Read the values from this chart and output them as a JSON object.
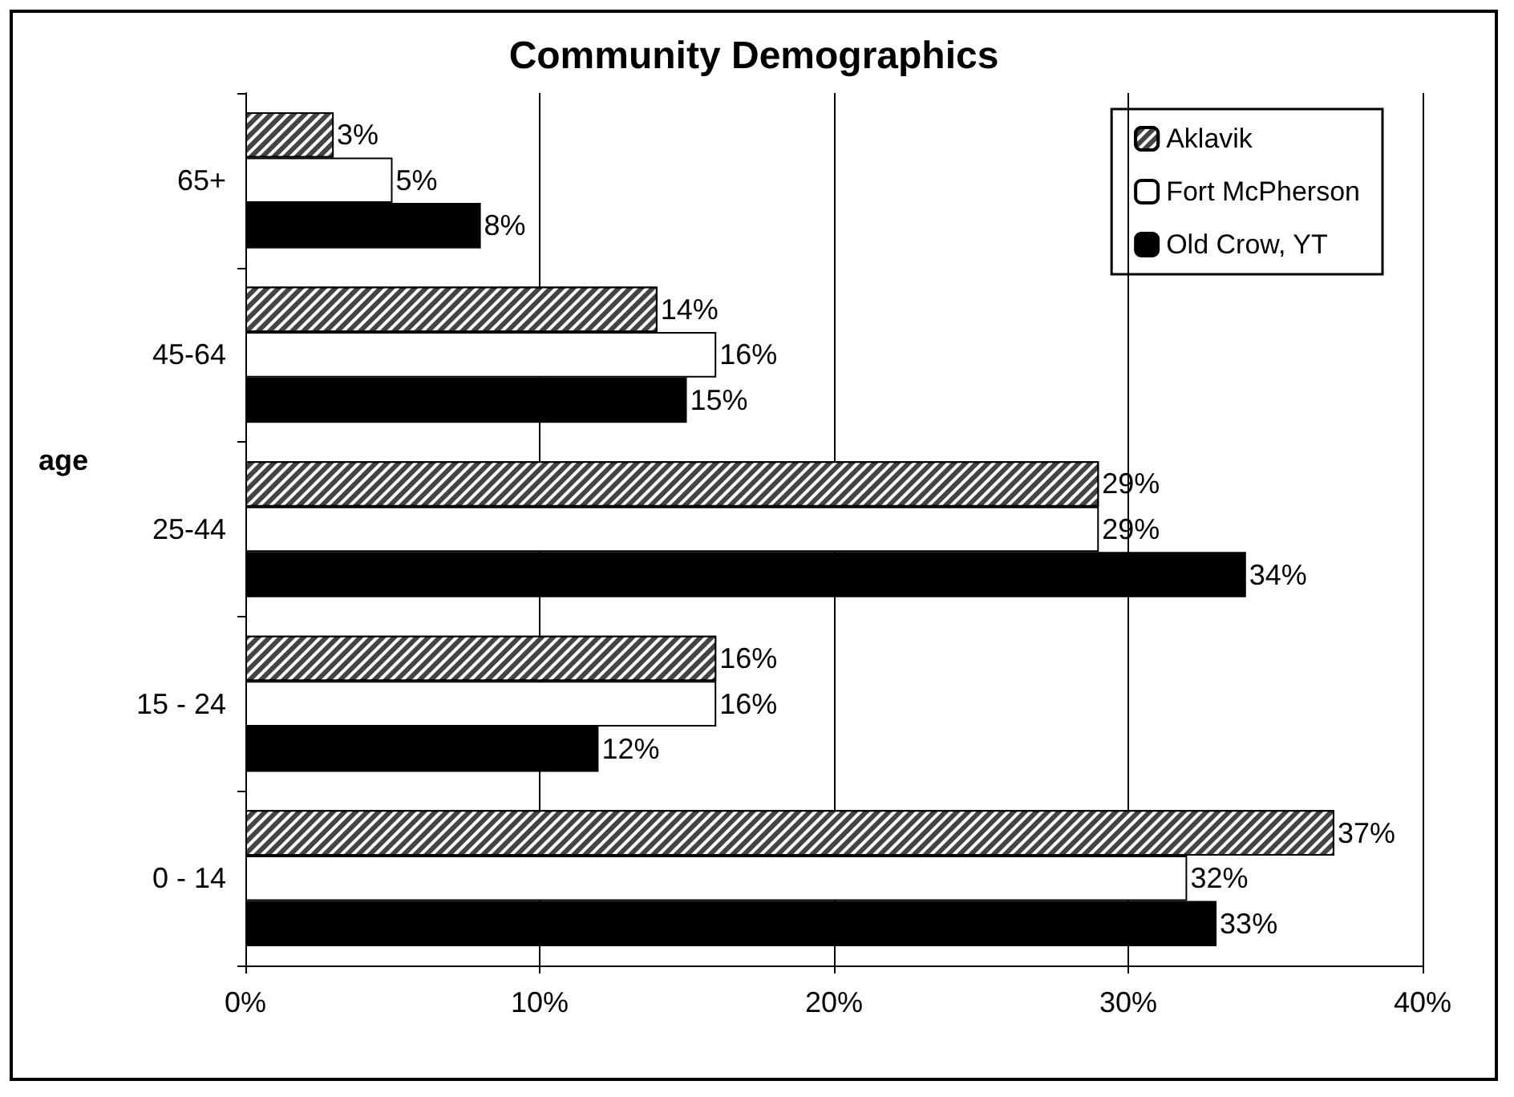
{
  "chart_data": {
    "type": "bar",
    "orientation": "horizontal",
    "title": "Community Demographics",
    "ylabel": "age",
    "categories": [
      "65+",
      "45-64",
      "25-44",
      "15 - 24",
      "0 - 14"
    ],
    "series": [
      {
        "name": "Aklavik",
        "color": "#444444",
        "values": [
          3,
          14,
          29,
          16,
          37
        ],
        "value_labels": [
          "3%",
          "14%",
          "29%",
          "16%",
          "37%"
        ]
      },
      {
        "name": "Fort McPherson",
        "color": "#ffffff",
        "values": [
          5,
          16,
          29,
          16,
          32
        ],
        "value_labels": [
          "5%",
          "16%",
          "29%",
          "16%",
          "32%"
        ]
      },
      {
        "name": "Old Crow, YT",
        "color": "#000000",
        "values": [
          8,
          15,
          34,
          12,
          33
        ],
        "value_labels": [
          "8%",
          "15%",
          "34%",
          "12%",
          "33%"
        ]
      }
    ],
    "xlim": [
      0,
      40
    ],
    "xticks": [
      {
        "value": 0,
        "label": "0%"
      },
      {
        "value": 10,
        "label": "10%"
      },
      {
        "value": 20,
        "label": "20%"
      },
      {
        "value": 30,
        "label": "30%"
      },
      {
        "value": 40,
        "label": "40%"
      }
    ],
    "grid": "x",
    "legend": "top right"
  }
}
